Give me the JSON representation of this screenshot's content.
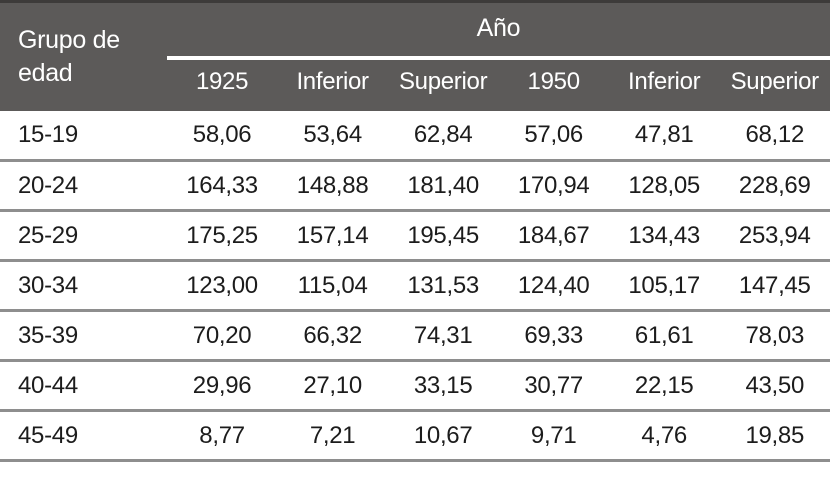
{
  "chart_data": {
    "type": "table",
    "row_header": "Grupo de edad",
    "column_group_header": "Año",
    "columns": [
      "1925",
      "Inferior",
      "Superior",
      "1950",
      "Inferior",
      "Superior"
    ],
    "rows": [
      {
        "group": "15-19",
        "values": [
          "58,06",
          "53,64",
          "62,84",
          "57,06",
          "47,81",
          "68,12"
        ]
      },
      {
        "group": "20-24",
        "values": [
          "164,33",
          "148,88",
          "181,40",
          "170,94",
          "128,05",
          "228,69"
        ]
      },
      {
        "group": "25-29",
        "values": [
          "175,25",
          "157,14",
          "195,45",
          "184,67",
          "134,43",
          "253,94"
        ]
      },
      {
        "group": "30-34",
        "values": [
          "123,00",
          "115,04",
          "131,53",
          "124,40",
          "105,17",
          "147,45"
        ]
      },
      {
        "group": "35-39",
        "values": [
          "70,20",
          "66,32",
          "74,31",
          "69,33",
          "61,61",
          "78,03"
        ]
      },
      {
        "group": "40-44",
        "values": [
          "29,96",
          "27,10",
          "33,15",
          "30,77",
          "22,15",
          "43,50"
        ]
      },
      {
        "group": "45-49",
        "values": [
          "8,77",
          "7,21",
          "10,67",
          "9,71",
          "4,76",
          "19,85"
        ]
      }
    ]
  },
  "colors": {
    "header_bg": "#5c5a59",
    "header_text": "#ffffff",
    "row_divider": "#8e8e8e",
    "top_border": "#3d3b3a",
    "body_text": "#1c1c1c"
  }
}
